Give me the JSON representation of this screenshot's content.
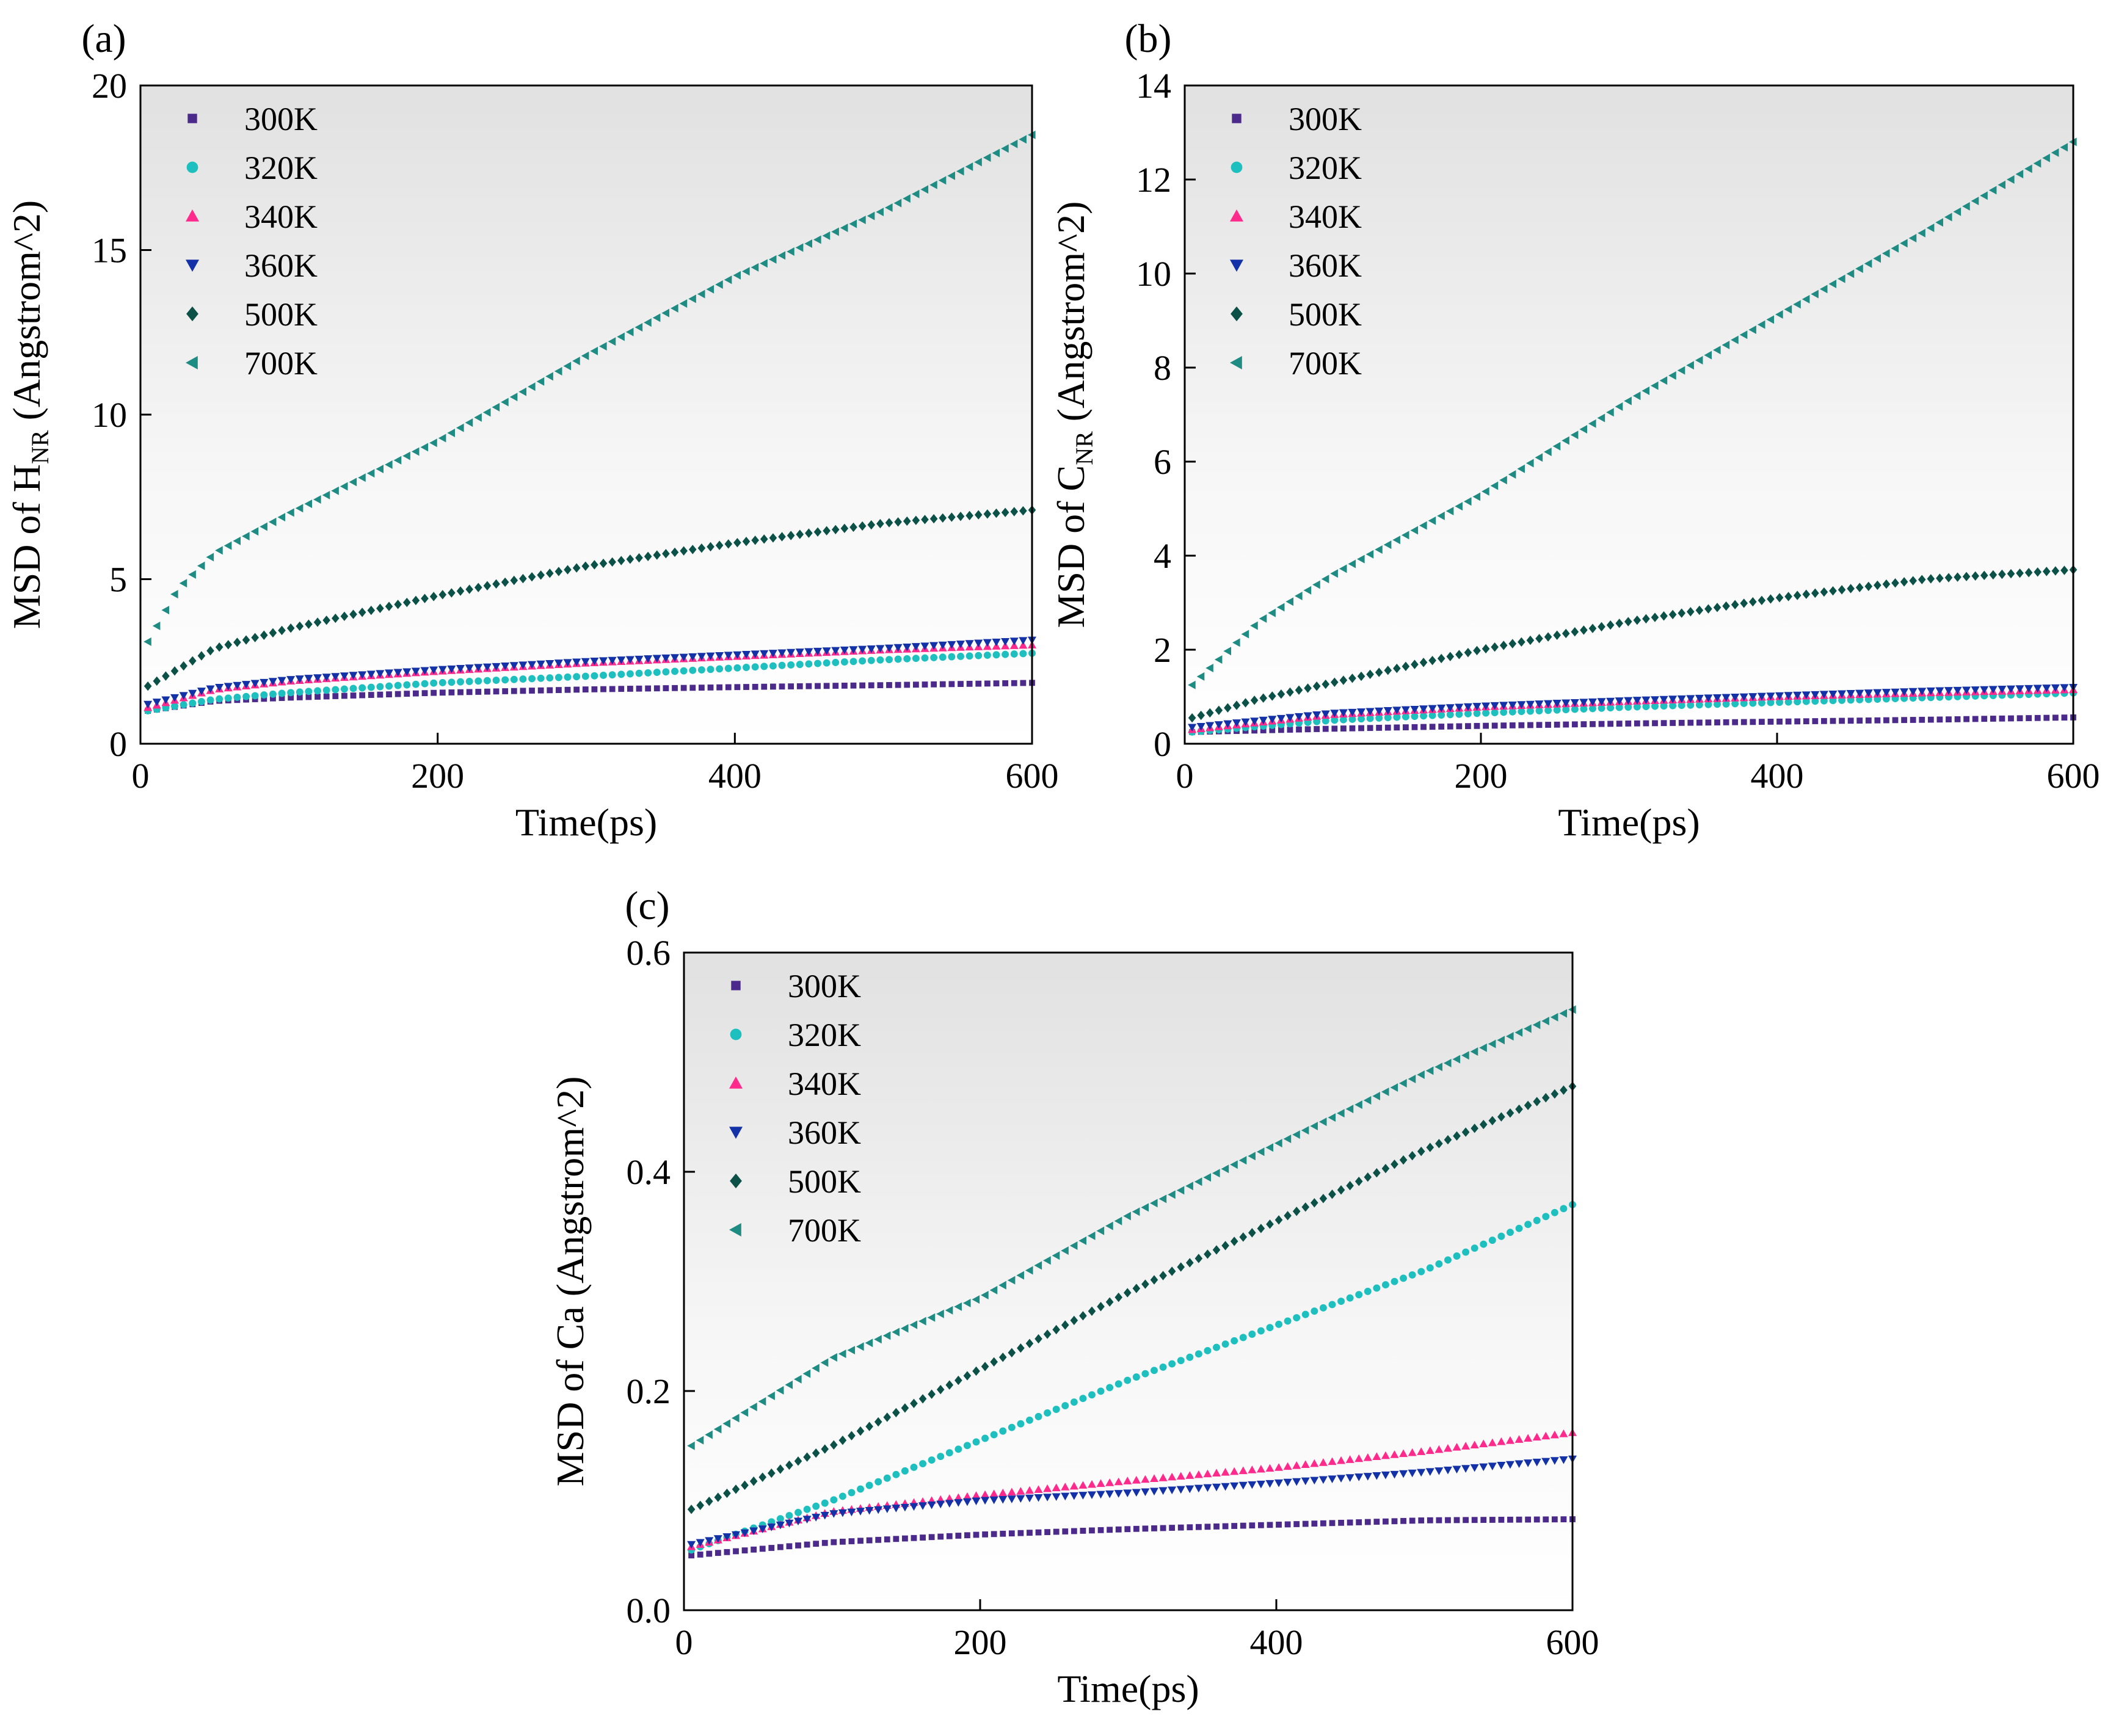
{
  "figure": {
    "colors": {
      "300K": "#4b2a8c",
      "320K": "#1ebfbf",
      "340K": "#ff2a8c",
      "360K": "#1432a8",
      "500K": "#0b5147",
      "700K": "#1f8c84"
    },
    "markers": {
      "300K": "square",
      "320K": "circle",
      "340K": "triangle-up",
      "360K": "triangle-down",
      "500K": "diamond",
      "700K": "triangle-left"
    }
  },
  "chart_data": [
    {
      "type": "scatter",
      "panel_label": "(a)",
      "xlabel": "Time(ps)",
      "ylabel_prefix": "MSD of H",
      "ylabel_sub": "NR",
      "ylabel_suffix": " (Angstrom^2)",
      "xlim": [
        0,
        600
      ],
      "ylim": [
        0,
        20
      ],
      "xticks": [
        0,
        200,
        400,
        600
      ],
      "yticks": [
        0,
        5,
        10,
        15,
        20
      ],
      "xtick_labels": [
        "0",
        "200",
        "400",
        "600"
      ],
      "ytick_labels": [
        "0",
        "5",
        "10",
        "15",
        "20"
      ],
      "legend_position": "top-left",
      "series": [
        {
          "name": "300K",
          "x": [
            5,
            50,
            100,
            200,
            300,
            400,
            500,
            600
          ],
          "values": [
            1.0,
            1.3,
            1.4,
            1.55,
            1.65,
            1.72,
            1.78,
            1.85
          ]
        },
        {
          "name": "320K",
          "x": [
            5,
            50,
            100,
            200,
            300,
            400,
            500,
            600
          ],
          "values": [
            1.0,
            1.35,
            1.55,
            1.85,
            2.05,
            2.3,
            2.55,
            2.75
          ]
        },
        {
          "name": "340K",
          "x": [
            5,
            50,
            100,
            200,
            300,
            400,
            500,
            600
          ],
          "values": [
            1.1,
            1.65,
            1.9,
            2.2,
            2.45,
            2.65,
            2.85,
            3.0
          ]
        },
        {
          "name": "360K",
          "x": [
            5,
            50,
            100,
            200,
            300,
            400,
            500,
            600
          ],
          "values": [
            1.2,
            1.7,
            1.95,
            2.25,
            2.5,
            2.7,
            2.9,
            3.15
          ]
        },
        {
          "name": "500K",
          "x": [
            5,
            50,
            100,
            200,
            300,
            400,
            500,
            600
          ],
          "values": [
            1.75,
            2.9,
            3.5,
            4.5,
            5.4,
            6.1,
            6.7,
            7.1
          ]
        },
        {
          "name": "700K",
          "x": [
            5,
            25,
            50,
            100,
            200,
            300,
            400,
            500,
            600
          ],
          "values": [
            3.1,
            4.7,
            5.8,
            7.0,
            9.2,
            11.8,
            14.2,
            16.2,
            18.5
          ]
        }
      ]
    },
    {
      "type": "scatter",
      "panel_label": "(b)",
      "xlabel": "Time(ps)",
      "ylabel_prefix": "MSD of C",
      "ylabel_sub": "NR",
      "ylabel_suffix": " (Angstrom^2)",
      "xlim": [
        0,
        600
      ],
      "ylim": [
        0,
        14
      ],
      "xticks": [
        0,
        200,
        400,
        600
      ],
      "yticks": [
        0,
        2,
        4,
        6,
        8,
        10,
        12,
        14
      ],
      "xtick_labels": [
        "0",
        "200",
        "400",
        "600"
      ],
      "ytick_labels": [
        "0",
        "2",
        "4",
        "6",
        "8",
        "10",
        "12",
        "14"
      ],
      "legend_position": "top-left",
      "series": [
        {
          "name": "300K",
          "x": [
            5,
            100,
            200,
            300,
            400,
            500,
            600
          ],
          "values": [
            0.25,
            0.32,
            0.38,
            0.43,
            0.47,
            0.51,
            0.56
          ]
        },
        {
          "name": "320K",
          "x": [
            5,
            100,
            200,
            300,
            400,
            500,
            600
          ],
          "values": [
            0.25,
            0.5,
            0.65,
            0.78,
            0.88,
            0.98,
            1.08
          ]
        },
        {
          "name": "340K",
          "x": [
            5,
            100,
            200,
            300,
            400,
            500,
            600
          ],
          "values": [
            0.3,
            0.62,
            0.78,
            0.9,
            1.0,
            1.08,
            1.15
          ]
        },
        {
          "name": "360K",
          "x": [
            5,
            100,
            200,
            300,
            400,
            500,
            600
          ],
          "values": [
            0.35,
            0.65,
            0.8,
            0.92,
            1.02,
            1.12,
            1.2
          ]
        },
        {
          "name": "500K",
          "x": [
            5,
            50,
            100,
            200,
            300,
            400,
            500,
            600
          ],
          "values": [
            0.55,
            0.95,
            1.3,
            2.0,
            2.6,
            3.1,
            3.5,
            3.7
          ]
        },
        {
          "name": "700K",
          "x": [
            5,
            50,
            100,
            200,
            300,
            400,
            500,
            600
          ],
          "values": [
            1.25,
            2.6,
            3.6,
            5.3,
            7.3,
            9.1,
            10.9,
            12.8
          ]
        }
      ]
    },
    {
      "type": "scatter",
      "panel_label": "(c)",
      "xlabel": "Time(ps)",
      "ylabel_prefix": "MSD of Ca (Angstrom^2)",
      "ylabel_sub": "",
      "ylabel_suffix": "",
      "xlim": [
        0,
        600
      ],
      "ylim": [
        0,
        0.6
      ],
      "xticks": [
        0,
        200,
        400,
        600
      ],
      "yticks": [
        0,
        0.2,
        0.4,
        0.6
      ],
      "xtick_labels": [
        "0",
        "200",
        "400",
        "600"
      ],
      "ytick_labels": [
        "0.0",
        "0.2",
        "0.4",
        "0.6"
      ],
      "legend_position": "top-left",
      "series": [
        {
          "name": "300K",
          "x": [
            5,
            100,
            200,
            300,
            400,
            500,
            600
          ],
          "values": [
            0.05,
            0.062,
            0.069,
            0.074,
            0.078,
            0.082,
            0.083
          ]
        },
        {
          "name": "320K",
          "x": [
            5,
            100,
            200,
            300,
            400,
            500,
            600
          ],
          "values": [
            0.055,
            0.1,
            0.155,
            0.21,
            0.26,
            0.31,
            0.37
          ]
        },
        {
          "name": "340K",
          "x": [
            5,
            100,
            200,
            300,
            400,
            500,
            600
          ],
          "values": [
            0.058,
            0.09,
            0.105,
            0.118,
            0.13,
            0.145,
            0.162
          ]
        },
        {
          "name": "360K",
          "x": [
            5,
            100,
            200,
            300,
            400,
            500,
            600
          ],
          "values": [
            0.06,
            0.088,
            0.1,
            0.107,
            0.116,
            0.126,
            0.138
          ]
        },
        {
          "name": "500K",
          "x": [
            5,
            100,
            200,
            300,
            400,
            500,
            600
          ],
          "values": [
            0.092,
            0.15,
            0.22,
            0.29,
            0.355,
            0.42,
            0.478
          ]
        },
        {
          "name": "700K",
          "x": [
            5,
            100,
            200,
            300,
            400,
            500,
            600
          ],
          "values": [
            0.15,
            0.23,
            0.285,
            0.36,
            0.425,
            0.49,
            0.548
          ]
        }
      ]
    }
  ]
}
